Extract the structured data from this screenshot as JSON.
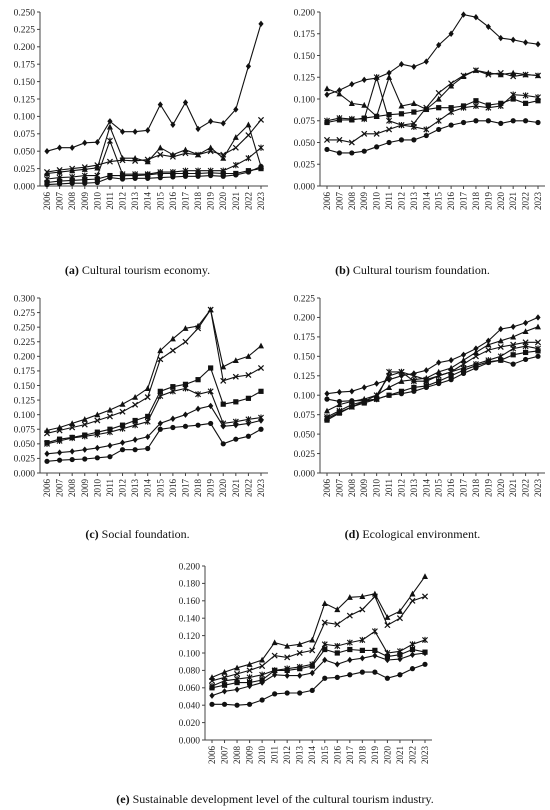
{
  "captions": [
    {
      "label": "(a)",
      "text": " Cultural tourism economy."
    },
    {
      "label": "(b)",
      "text": " Cultural tourism foundation."
    },
    {
      "label": "(c)",
      "text": " Social foundation."
    },
    {
      "label": "(d)",
      "text": " Ecological environment."
    },
    {
      "label": "(e)",
      "text": " Sustainable development level of the cultural tourism industry."
    }
  ],
  "colors": {
    "series": "#111111",
    "axis": "#444444"
  },
  "chart_data": [
    {
      "type": "line",
      "x": [
        "2006",
        "2007",
        "2008",
        "2009",
        "2010",
        "2011",
        "2012",
        "2013",
        "2014",
        "2015",
        "2016",
        "2017",
        "2018",
        "2019",
        "2020",
        "2021",
        "2022",
        "2023"
      ],
      "y_ticks": [
        "0.000",
        "0.025",
        "0.050",
        "0.075",
        "0.100",
        "0.125",
        "0.150",
        "0.175",
        "0.200",
        "0.225",
        "0.250"
      ],
      "ylim": [
        0,
        0.25
      ],
      "grid": false,
      "series": [
        {
          "marker": "diamond",
          "values": [
            0.05,
            0.055,
            0.055,
            0.062,
            0.063,
            0.093,
            0.078,
            0.078,
            0.08,
            0.117,
            0.088,
            0.12,
            0.082,
            0.093,
            0.09,
            0.11,
            0.172,
            0.233
          ]
        },
        {
          "marker": "x",
          "values": [
            0.02,
            0.023,
            0.025,
            0.027,
            0.03,
            0.035,
            0.037,
            0.036,
            0.038,
            0.045,
            0.042,
            0.047,
            0.045,
            0.05,
            0.045,
            0.055,
            0.073,
            0.095
          ]
        },
        {
          "marker": "triangle",
          "values": [
            0.018,
            0.02,
            0.022,
            0.024,
            0.026,
            0.085,
            0.04,
            0.04,
            0.035,
            0.055,
            0.045,
            0.052,
            0.045,
            0.055,
            0.04,
            0.07,
            0.088,
            0.028
          ]
        },
        {
          "marker": "star",
          "values": [
            0.01,
            0.012,
            0.013,
            0.015,
            0.015,
            0.065,
            0.017,
            0.017,
            0.017,
            0.02,
            0.02,
            0.022,
            0.022,
            0.022,
            0.022,
            0.03,
            0.04,
            0.055
          ]
        },
        {
          "marker": "square",
          "values": [
            0.005,
            0.007,
            0.008,
            0.009,
            0.01,
            0.015,
            0.015,
            0.015,
            0.016,
            0.018,
            0.018,
            0.018,
            0.018,
            0.019,
            0.018,
            0.018,
            0.022,
            0.025
          ]
        },
        {
          "marker": "circle",
          "values": [
            0.002,
            0.003,
            0.004,
            0.004,
            0.005,
            0.012,
            0.01,
            0.011,
            0.011,
            0.012,
            0.013,
            0.014,
            0.014,
            0.015,
            0.014,
            0.016,
            0.02,
            0.028
          ]
        }
      ]
    },
    {
      "type": "line",
      "x": [
        "2006",
        "2007",
        "2008",
        "2009",
        "2010",
        "2011",
        "2012",
        "2013",
        "2014",
        "2015",
        "2016",
        "2017",
        "2018",
        "2019",
        "2020",
        "2021",
        "2022",
        "2023"
      ],
      "y_ticks": [
        "0.000",
        "0.025",
        "0.050",
        "0.075",
        "0.100",
        "0.125",
        "0.150",
        "0.175",
        "0.200"
      ],
      "ylim": [
        0,
        0.2
      ],
      "grid": false,
      "series": [
        {
          "marker": "diamond",
          "values": [
            0.105,
            0.11,
            0.117,
            0.122,
            0.124,
            0.13,
            0.14,
            0.137,
            0.143,
            0.162,
            0.175,
            0.197,
            0.194,
            0.183,
            0.17,
            0.168,
            0.165,
            0.163
          ]
        },
        {
          "marker": "x",
          "values": [
            0.053,
            0.053,
            0.05,
            0.06,
            0.06,
            0.065,
            0.07,
            0.072,
            0.09,
            0.107,
            0.118,
            0.127,
            0.133,
            0.128,
            0.13,
            0.126,
            0.128,
            0.127
          ]
        },
        {
          "marker": "triangle",
          "values": [
            0.112,
            0.106,
            0.095,
            0.093,
            0.08,
            0.125,
            0.092,
            0.095,
            0.088,
            0.1,
            0.115,
            0.126,
            0.133,
            0.13,
            0.128,
            0.13,
            0.128,
            0.127
          ]
        },
        {
          "marker": "star",
          "values": [
            0.075,
            0.078,
            0.077,
            0.077,
            0.125,
            0.075,
            0.07,
            0.068,
            0.065,
            0.075,
            0.085,
            0.09,
            0.092,
            0.09,
            0.092,
            0.105,
            0.104,
            0.102
          ]
        },
        {
          "marker": "square",
          "values": [
            0.073,
            0.076,
            0.076,
            0.078,
            0.08,
            0.082,
            0.083,
            0.085,
            0.088,
            0.09,
            0.09,
            0.092,
            0.098,
            0.093,
            0.095,
            0.1,
            0.095,
            0.098
          ]
        },
        {
          "marker": "circle",
          "values": [
            0.042,
            0.038,
            0.038,
            0.04,
            0.045,
            0.05,
            0.053,
            0.053,
            0.058,
            0.065,
            0.07,
            0.073,
            0.075,
            0.075,
            0.072,
            0.075,
            0.075,
            0.073
          ]
        }
      ]
    },
    {
      "type": "line",
      "x": [
        "2006",
        "2007",
        "2008",
        "2009",
        "2010",
        "2011",
        "2012",
        "2013",
        "2014",
        "2015",
        "2016",
        "2017",
        "2018",
        "2019",
        "2020",
        "2021",
        "2022",
        "2023"
      ],
      "y_ticks": [
        "0.000",
        "0.025",
        "0.050",
        "0.075",
        "0.100",
        "0.125",
        "0.150",
        "0.175",
        "0.200",
        "0.225",
        "0.250",
        "0.275",
        "0.300"
      ],
      "ylim": [
        0,
        0.3
      ],
      "grid": false,
      "series": [
        {
          "marker": "triangle",
          "values": [
            0.073,
            0.078,
            0.085,
            0.092,
            0.1,
            0.108,
            0.118,
            0.13,
            0.145,
            0.21,
            0.23,
            0.248,
            0.252,
            0.28,
            0.182,
            0.193,
            0.2,
            0.218
          ]
        },
        {
          "marker": "x",
          "values": [
            0.068,
            0.073,
            0.078,
            0.083,
            0.09,
            0.097,
            0.105,
            0.117,
            0.13,
            0.195,
            0.21,
            0.225,
            0.248,
            0.28,
            0.158,
            0.165,
            0.168,
            0.18
          ]
        },
        {
          "marker": "square",
          "values": [
            0.052,
            0.058,
            0.061,
            0.065,
            0.07,
            0.075,
            0.082,
            0.09,
            0.097,
            0.14,
            0.148,
            0.152,
            0.16,
            0.18,
            0.118,
            0.122,
            0.128,
            0.14
          ]
        },
        {
          "marker": "star",
          "values": [
            0.05,
            0.055,
            0.06,
            0.063,
            0.066,
            0.07,
            0.076,
            0.082,
            0.088,
            0.132,
            0.14,
            0.145,
            0.135,
            0.14,
            0.085,
            0.088,
            0.092,
            0.095
          ]
        },
        {
          "marker": "diamond",
          "values": [
            0.033,
            0.035,
            0.037,
            0.04,
            0.043,
            0.047,
            0.052,
            0.057,
            0.062,
            0.085,
            0.093,
            0.1,
            0.11,
            0.115,
            0.08,
            0.082,
            0.085,
            0.09
          ]
        },
        {
          "marker": "circle",
          "values": [
            0.02,
            0.022,
            0.023,
            0.024,
            0.026,
            0.028,
            0.04,
            0.04,
            0.042,
            0.075,
            0.078,
            0.08,
            0.082,
            0.085,
            0.05,
            0.058,
            0.063,
            0.075
          ]
        }
      ]
    },
    {
      "type": "line",
      "x": [
        "2006",
        "2007",
        "2008",
        "2009",
        "2010",
        "2011",
        "2012",
        "2013",
        "2014",
        "2015",
        "2016",
        "2017",
        "2018",
        "2019",
        "2020",
        "2021",
        "2022",
        "2023"
      ],
      "y_ticks": [
        "0.000",
        "0.025",
        "0.050",
        "0.075",
        "0.100",
        "0.125",
        "0.150",
        "0.175",
        "0.200",
        "0.225"
      ],
      "ylim": [
        0,
        0.225
      ],
      "grid": false,
      "series": [
        {
          "marker": "diamond",
          "values": [
            0.102,
            0.104,
            0.105,
            0.11,
            0.115,
            0.12,
            0.125,
            0.128,
            0.132,
            0.142,
            0.145,
            0.152,
            0.16,
            0.17,
            0.185,
            0.188,
            0.193,
            0.2
          ]
        },
        {
          "marker": "triangle",
          "values": [
            0.08,
            0.088,
            0.092,
            0.095,
            0.1,
            0.11,
            0.118,
            0.12,
            0.122,
            0.13,
            0.135,
            0.145,
            0.155,
            0.165,
            0.17,
            0.175,
            0.182,
            0.188
          ]
        },
        {
          "marker": "x",
          "values": [
            0.07,
            0.078,
            0.085,
            0.092,
            0.1,
            0.125,
            0.13,
            0.125,
            0.12,
            0.125,
            0.13,
            0.14,
            0.15,
            0.158,
            0.162,
            0.165,
            0.168,
            0.168
          ]
        },
        {
          "marker": "star",
          "values": [
            0.072,
            0.08,
            0.088,
            0.092,
            0.095,
            0.13,
            0.13,
            0.118,
            0.118,
            0.125,
            0.13,
            0.135,
            0.14,
            0.145,
            0.15,
            0.16,
            0.163,
            0.16
          ]
        },
        {
          "marker": "square",
          "values": [
            0.068,
            0.077,
            0.085,
            0.09,
            0.095,
            0.1,
            0.105,
            0.11,
            0.112,
            0.118,
            0.125,
            0.132,
            0.138,
            0.143,
            0.145,
            0.152,
            0.155,
            0.157
          ]
        },
        {
          "marker": "circle",
          "values": [
            0.095,
            0.092,
            0.093,
            0.093,
            0.095,
            0.1,
            0.102,
            0.105,
            0.11,
            0.115,
            0.12,
            0.128,
            0.135,
            0.142,
            0.145,
            0.14,
            0.146,
            0.15
          ]
        }
      ]
    },
    {
      "type": "line",
      "x": [
        "2006",
        "2007",
        "2008",
        "2009",
        "2010",
        "2011",
        "2012",
        "2013",
        "2014",
        "2015",
        "2016",
        "2017",
        "2018",
        "2019",
        "2020",
        "2021",
        "2022",
        "2023"
      ],
      "y_ticks": [
        "0.000",
        "0.020",
        "0.040",
        "0.060",
        "0.080",
        "0.100",
        "0.120",
        "0.140",
        "0.160",
        "0.180",
        "0.200"
      ],
      "ylim": [
        0,
        0.2
      ],
      "grid": false,
      "series": [
        {
          "marker": "triangle",
          "values": [
            0.072,
            0.078,
            0.083,
            0.087,
            0.092,
            0.112,
            0.108,
            0.11,
            0.115,
            0.157,
            0.15,
            0.164,
            0.165,
            0.168,
            0.141,
            0.148,
            0.168,
            0.188
          ]
        },
        {
          "marker": "x",
          "values": [
            0.068,
            0.072,
            0.076,
            0.08,
            0.085,
            0.097,
            0.095,
            0.1,
            0.103,
            0.135,
            0.133,
            0.143,
            0.15,
            0.165,
            0.132,
            0.14,
            0.16,
            0.165
          ]
        },
        {
          "marker": "star",
          "values": [
            0.062,
            0.068,
            0.07,
            0.072,
            0.075,
            0.08,
            0.082,
            0.084,
            0.087,
            0.11,
            0.108,
            0.112,
            0.115,
            0.125,
            0.1,
            0.102,
            0.11,
            0.115
          ]
        },
        {
          "marker": "square",
          "values": [
            0.06,
            0.063,
            0.066,
            0.066,
            0.069,
            0.08,
            0.08,
            0.082,
            0.085,
            0.104,
            0.1,
            0.104,
            0.103,
            0.103,
            0.096,
            0.098,
            0.104,
            0.101
          ]
        },
        {
          "marker": "diamond",
          "values": [
            0.051,
            0.056,
            0.058,
            0.062,
            0.066,
            0.075,
            0.074,
            0.074,
            0.077,
            0.092,
            0.087,
            0.092,
            0.094,
            0.097,
            0.092,
            0.093,
            0.098,
            0.1
          ]
        },
        {
          "marker": "circle",
          "values": [
            0.041,
            0.041,
            0.04,
            0.041,
            0.046,
            0.053,
            0.054,
            0.054,
            0.057,
            0.071,
            0.072,
            0.075,
            0.078,
            0.078,
            0.071,
            0.075,
            0.082,
            0.087
          ]
        }
      ]
    }
  ]
}
